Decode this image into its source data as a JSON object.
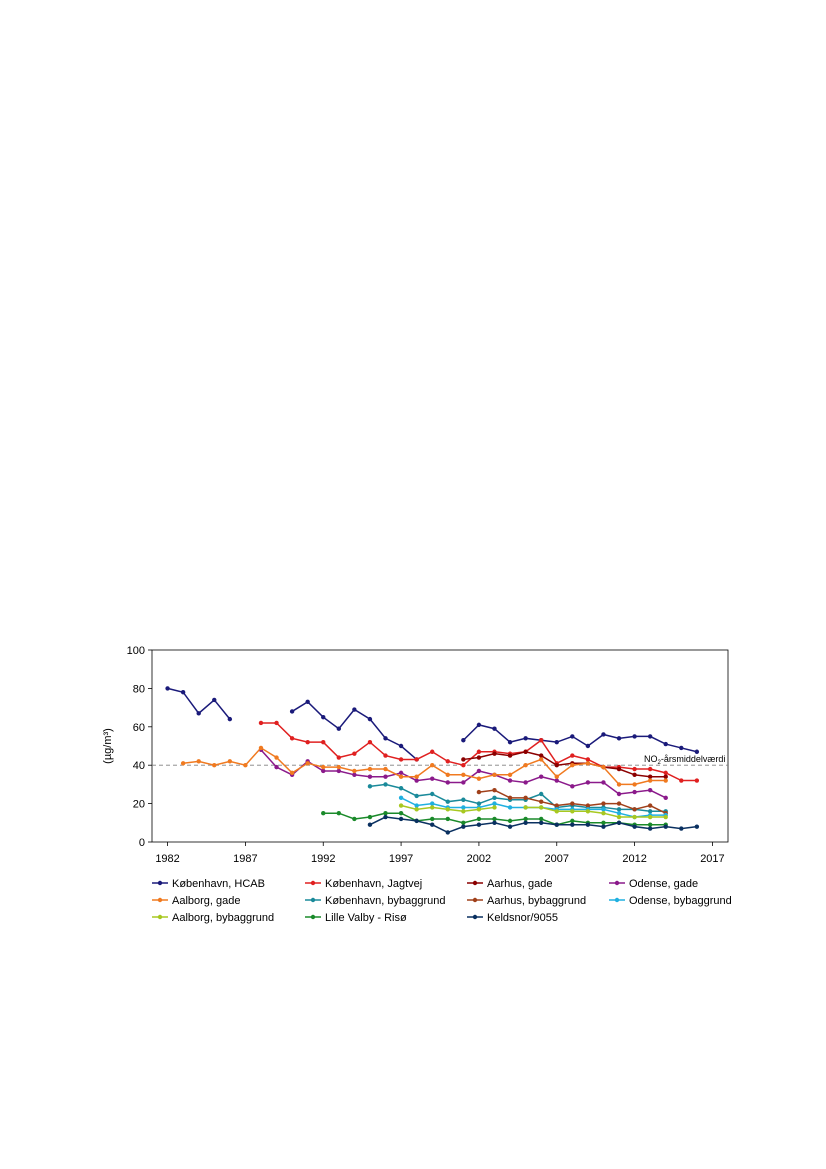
{
  "chart_data": {
    "type": "line",
    "title": "",
    "xlabel": "",
    "ylabel": "(µg/m³)",
    "xlim": [
      1981,
      2018
    ],
    "ylim": [
      0,
      100
    ],
    "x_ticks": [
      "1982",
      "1987",
      "1992",
      "1997",
      "2002",
      "2007",
      "2012",
      "2017"
    ],
    "y_ticks": [
      "0",
      "20",
      "40",
      "60",
      "80",
      "100"
    ],
    "grid": false,
    "legend_position": "bottom",
    "reference_line": {
      "value": 40,
      "label_prefix": "NO",
      "label_sub": "2",
      "label_suffix": "-årsmiddelværdi",
      "color": "#808080"
    },
    "series": [
      {
        "name": "København, HCAB",
        "color": "#1a1a7a",
        "points": [
          [
            1982,
            80
          ],
          [
            1983,
            78
          ],
          [
            1984,
            67
          ],
          [
            1985,
            74
          ],
          [
            1986,
            64
          ],
          [
            1990,
            68
          ],
          [
            1991,
            73
          ],
          [
            1992,
            65
          ],
          [
            1993,
            59
          ],
          [
            1994,
            69
          ],
          [
            1995,
            64
          ],
          [
            1996,
            54
          ],
          [
            1997,
            50
          ],
          [
            1998,
            43
          ],
          [
            2001,
            53
          ],
          [
            2002,
            61
          ],
          [
            2003,
            59
          ],
          [
            2004,
            52
          ],
          [
            2005,
            54
          ],
          [
            2006,
            53
          ],
          [
            2007,
            52
          ],
          [
            2008,
            55
          ],
          [
            2009,
            50
          ],
          [
            2010,
            56
          ],
          [
            2011,
            54
          ],
          [
            2012,
            55
          ],
          [
            2013,
            55
          ],
          [
            2014,
            51
          ],
          [
            2015,
            49
          ],
          [
            2016,
            47
          ]
        ]
      },
      {
        "name": "København, Jagtvej",
        "color": "#e02020",
        "points": [
          [
            1988,
            62
          ],
          [
            1989,
            62
          ],
          [
            1990,
            54
          ],
          [
            1991,
            52
          ],
          [
            1992,
            52
          ],
          [
            1993,
            44
          ],
          [
            1994,
            46
          ],
          [
            1995,
            52
          ],
          [
            1996,
            45
          ],
          [
            1997,
            43
          ],
          [
            1998,
            43
          ],
          [
            1999,
            47
          ],
          [
            2000,
            42
          ],
          [
            2001,
            40
          ],
          [
            2002,
            47
          ],
          [
            2003,
            47
          ],
          [
            2004,
            46
          ],
          [
            2005,
            47
          ],
          [
            2006,
            53
          ],
          [
            2007,
            41
          ],
          [
            2008,
            45
          ],
          [
            2009,
            43
          ],
          [
            2010,
            39
          ],
          [
            2011,
            39
          ],
          [
            2012,
            38
          ],
          [
            2013,
            38
          ],
          [
            2014,
            36
          ],
          [
            2015,
            32
          ],
          [
            2016,
            32
          ]
        ]
      },
      {
        "name": "Aarhus, gade",
        "color": "#8b0000",
        "points": [
          [
            2001,
            43
          ],
          [
            2002,
            44
          ],
          [
            2003,
            46
          ],
          [
            2004,
            45
          ],
          [
            2005,
            47
          ],
          [
            2006,
            45
          ],
          [
            2007,
            40
          ],
          [
            2008,
            41
          ],
          [
            2009,
            41
          ],
          [
            2010,
            39
          ],
          [
            2011,
            38
          ],
          [
            2012,
            35
          ],
          [
            2013,
            34
          ],
          [
            2014,
            34
          ]
        ]
      },
      {
        "name": "Odense, gade",
        "color": "#8b1a8b",
        "points": [
          [
            1988,
            48
          ],
          [
            1989,
            39
          ],
          [
            1990,
            35
          ],
          [
            1991,
            42
          ],
          [
            1992,
            37
          ],
          [
            1993,
            37
          ],
          [
            1994,
            35
          ],
          [
            1995,
            34
          ],
          [
            1996,
            34
          ],
          [
            1997,
            36
          ],
          [
            1998,
            32
          ],
          [
            1999,
            33
          ],
          [
            2000,
            31
          ],
          [
            2001,
            31
          ],
          [
            2002,
            37
          ],
          [
            2003,
            35
          ],
          [
            2004,
            32
          ],
          [
            2005,
            31
          ],
          [
            2006,
            34
          ],
          [
            2007,
            32
          ],
          [
            2008,
            29
          ],
          [
            2009,
            31
          ],
          [
            2010,
            31
          ],
          [
            2011,
            25
          ],
          [
            2012,
            26
          ],
          [
            2013,
            27
          ],
          [
            2014,
            23
          ]
        ]
      },
      {
        "name": "Aalborg, gade",
        "color": "#f07a20",
        "points": [
          [
            1983,
            41
          ],
          [
            1984,
            42
          ],
          [
            1985,
            40
          ],
          [
            1986,
            42
          ],
          [
            1987,
            40
          ],
          [
            1988,
            49
          ],
          [
            1989,
            44
          ],
          [
            1990,
            36
          ],
          [
            1991,
            41
          ],
          [
            1992,
            39
          ],
          [
            1993,
            39
          ],
          [
            1994,
            37
          ],
          [
            1995,
            38
          ],
          [
            1996,
            38
          ],
          [
            1997,
            34
          ],
          [
            1998,
            34
          ],
          [
            1999,
            40
          ],
          [
            2000,
            35
          ],
          [
            2001,
            35
          ],
          [
            2002,
            33
          ],
          [
            2003,
            35
          ],
          [
            2004,
            35
          ],
          [
            2005,
            40
          ],
          [
            2006,
            43
          ],
          [
            2007,
            34
          ],
          [
            2008,
            40
          ],
          [
            2009,
            41
          ],
          [
            2010,
            39
          ],
          [
            2011,
            30
          ],
          [
            2012,
            30
          ],
          [
            2013,
            32
          ],
          [
            2014,
            32
          ]
        ]
      },
      {
        "name": "København, bybaggrund",
        "color": "#1a8a9a",
        "points": [
          [
            1995,
            29
          ],
          [
            1996,
            30
          ],
          [
            1997,
            28
          ],
          [
            1998,
            24
          ],
          [
            1999,
            25
          ],
          [
            2000,
            21
          ],
          [
            2001,
            22
          ],
          [
            2002,
            20
          ],
          [
            2003,
            23
          ],
          [
            2004,
            22
          ],
          [
            2005,
            22
          ],
          [
            2006,
            25
          ],
          [
            2007,
            18
          ],
          [
            2008,
            19
          ],
          [
            2009,
            18
          ],
          [
            2010,
            18
          ],
          [
            2011,
            17
          ],
          [
            2012,
            17
          ],
          [
            2013,
            16
          ],
          [
            2014,
            16
          ]
        ]
      },
      {
        "name": "Aarhus, bybaggrund",
        "color": "#a0401a",
        "points": [
          [
            2002,
            26
          ],
          [
            2003,
            27
          ],
          [
            2004,
            23
          ],
          [
            2005,
            23
          ],
          [
            2006,
            21
          ],
          [
            2007,
            19
          ],
          [
            2008,
            20
          ],
          [
            2009,
            19
          ],
          [
            2010,
            20
          ],
          [
            2011,
            20
          ],
          [
            2012,
            17
          ],
          [
            2013,
            19
          ],
          [
            2014,
            15
          ]
        ]
      },
      {
        "name": "Odense, bybaggrund",
        "color": "#20b0e0",
        "points": [
          [
            1997,
            23
          ],
          [
            1998,
            19
          ],
          [
            1999,
            20
          ],
          [
            2000,
            18
          ],
          [
            2001,
            18
          ],
          [
            2002,
            18
          ],
          [
            2003,
            20
          ],
          [
            2004,
            18
          ],
          [
            2005,
            18
          ],
          [
            2006,
            18
          ],
          [
            2007,
            17
          ],
          [
            2008,
            17
          ],
          [
            2009,
            17
          ],
          [
            2010,
            17
          ],
          [
            2011,
            15
          ],
          [
            2012,
            13
          ],
          [
            2013,
            14
          ],
          [
            2014,
            14
          ]
        ]
      },
      {
        "name": "Aalborg, bybaggrund",
        "color": "#a8c820",
        "points": [
          [
            1997,
            19
          ],
          [
            1998,
            17
          ],
          [
            1999,
            18
          ],
          [
            2000,
            17
          ],
          [
            2001,
            16
          ],
          [
            2002,
            17
          ],
          [
            2003,
            18
          ],
          [
            2005,
            18
          ],
          [
            2006,
            18
          ],
          [
            2007,
            16
          ],
          [
            2008,
            16
          ],
          [
            2009,
            16
          ],
          [
            2010,
            15
          ],
          [
            2011,
            13
          ],
          [
            2012,
            13
          ],
          [
            2013,
            13
          ],
          [
            2014,
            13
          ]
        ]
      },
      {
        "name": "Lille Valby - Risø",
        "color": "#1a8a2a",
        "points": [
          [
            1992,
            15
          ],
          [
            1993,
            15
          ],
          [
            1994,
            12
          ],
          [
            1995,
            13
          ],
          [
            1996,
            15
          ],
          [
            1997,
            15
          ],
          [
            1998,
            11
          ],
          [
            1999,
            12
          ],
          [
            2000,
            12
          ],
          [
            2001,
            10
          ],
          [
            2002,
            12
          ],
          [
            2003,
            12
          ],
          [
            2004,
            11
          ],
          [
            2005,
            12
          ],
          [
            2006,
            12
          ],
          [
            2007,
            9
          ],
          [
            2008,
            11
          ],
          [
            2009,
            10
          ],
          [
            2010,
            10
          ],
          [
            2011,
            10
          ],
          [
            2012,
            9
          ],
          [
            2013,
            9
          ],
          [
            2014,
            9
          ]
        ]
      },
      {
        "name": "Keldsnor/9055",
        "color": "#0a3060",
        "points": [
          [
            1995,
            9
          ],
          [
            1996,
            13
          ],
          [
            1997,
            12
          ],
          [
            1998,
            11
          ],
          [
            1999,
            9
          ],
          [
            2000,
            5
          ],
          [
            2001,
            8
          ],
          [
            2002,
            9
          ],
          [
            2003,
            10
          ],
          [
            2004,
            8
          ],
          [
            2005,
            10
          ],
          [
            2006,
            10
          ],
          [
            2007,
            9
          ],
          [
            2008,
            9
          ],
          [
            2009,
            9
          ],
          [
            2010,
            8
          ],
          [
            2011,
            10
          ],
          [
            2012,
            8
          ],
          [
            2013,
            7
          ],
          [
            2014,
            8
          ],
          [
            2015,
            7
          ],
          [
            2016,
            8
          ]
        ]
      }
    ]
  }
}
